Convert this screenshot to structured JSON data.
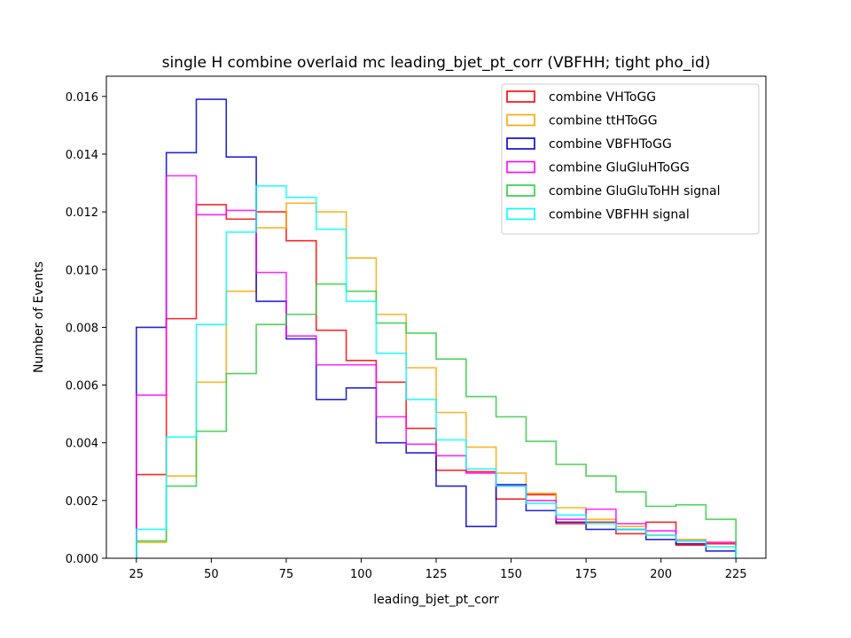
{
  "chart_data": {
    "type": "histogram-step",
    "title": "single H combine overlaid mc leading_bjet_pt_corr (VBFHH; tight pho_id)",
    "xlabel": "leading_bjet_pt_corr",
    "ylabel": "Number of Events",
    "xlim": [
      15,
      235
    ],
    "ylim": [
      0,
      0.0167
    ],
    "x_ticks": [
      25,
      50,
      75,
      100,
      125,
      150,
      175,
      200,
      225
    ],
    "x_tick_labels": [
      "25",
      "50",
      "75",
      "100",
      "125",
      "150",
      "175",
      "200",
      "225"
    ],
    "y_ticks": [
      0,
      0.002,
      0.004,
      0.006,
      0.008,
      0.01,
      0.012,
      0.014,
      0.016
    ],
    "y_tick_labels": [
      "0.000",
      "0.002",
      "0.004",
      "0.006",
      "0.008",
      "0.010",
      "0.012",
      "0.014",
      "0.016"
    ],
    "grid": false,
    "legend_position": "top-right",
    "bin_edges": [
      25,
      35,
      45,
      55,
      65,
      75,
      85,
      95,
      105,
      115,
      125,
      135,
      145,
      155,
      165,
      175,
      185,
      195,
      205,
      215,
      225
    ],
    "series": [
      {
        "name": "combine VHToGG",
        "color": "#ff0000",
        "values": [
          0.0029,
          0.0083,
          0.01225,
          0.01175,
          0.012,
          0.011,
          0.0079,
          0.00685,
          0.0061,
          0.0045,
          0.00305,
          0.003,
          0.00205,
          0.0022,
          0.0012,
          0.00125,
          0.00085,
          0.00125,
          0.00045,
          0.0005
        ]
      },
      {
        "name": "combine ttHToGG",
        "color": "#ffa500",
        "values": [
          0.00055,
          0.00285,
          0.0061,
          0.00925,
          0.01145,
          0.0123,
          0.012,
          0.0104,
          0.00845,
          0.0066,
          0.00505,
          0.00385,
          0.00295,
          0.00225,
          0.00175,
          0.00135,
          0.0011,
          0.0008,
          0.00065,
          0.00055
        ]
      },
      {
        "name": "combine VBFHToGG",
        "color": "#0000cd",
        "values": [
          0.008,
          0.01405,
          0.0159,
          0.0139,
          0.0089,
          0.0076,
          0.0055,
          0.0059,
          0.004,
          0.00365,
          0.0025,
          0.0011,
          0.00255,
          0.00165,
          0.00125,
          0.001,
          0.001,
          0.00065,
          0.0005,
          0.00025
        ]
      },
      {
        "name": "combine GluGluHToGG",
        "color": "#ff00ff",
        "values": [
          0.00565,
          0.01325,
          0.0119,
          0.01205,
          0.0099,
          0.0077,
          0.0067,
          0.0067,
          0.0049,
          0.00395,
          0.00355,
          0.00295,
          0.0025,
          0.002,
          0.00135,
          0.0017,
          0.0012,
          0.00095,
          0.0006,
          0.00055
        ]
      },
      {
        "name": "combine GluGluToHH signal",
        "color": "#2ecc40",
        "values": [
          0.0006,
          0.0025,
          0.0044,
          0.0064,
          0.0081,
          0.00845,
          0.0095,
          0.00925,
          0.00815,
          0.0078,
          0.0069,
          0.0056,
          0.0049,
          0.00405,
          0.00325,
          0.00285,
          0.0023,
          0.0018,
          0.00185,
          0.00135
        ]
      },
      {
        "name": "combine VBFHH signal",
        "color": "#00ffff",
        "values": [
          0.001,
          0.0042,
          0.0081,
          0.0113,
          0.0129,
          0.0125,
          0.0114,
          0.0089,
          0.0071,
          0.0055,
          0.0041,
          0.0031,
          0.0025,
          0.0019,
          0.0015,
          0.0012,
          0.001,
          0.0008,
          0.0006,
          0.0004
        ]
      }
    ]
  }
}
